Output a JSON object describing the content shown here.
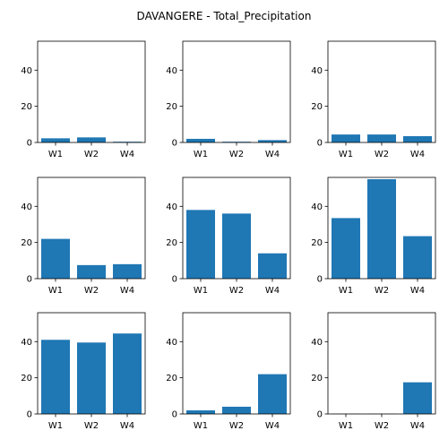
{
  "figure": {
    "suptitle": "DAVANGERE - Total_Precipitation"
  },
  "style": {
    "bar_color": "#1f77b4",
    "axis_color": "#000000",
    "background": "#ffffff"
  },
  "chart_data": [
    {
      "type": "bar",
      "categories": [
        "W1",
        "W2",
        "W4"
      ],
      "values": [
        2.3,
        2.8,
        0.4
      ],
      "ylim": [
        0,
        56
      ],
      "yticks": [
        0,
        20,
        40
      ],
      "grid": false
    },
    {
      "type": "bar",
      "categories": [
        "W1",
        "W2",
        "W4"
      ],
      "values": [
        2.0,
        0.4,
        1.3
      ],
      "ylim": [
        0,
        56
      ],
      "yticks": [
        0,
        20,
        40
      ],
      "grid": false
    },
    {
      "type": "bar",
      "categories": [
        "W1",
        "W2",
        "W4"
      ],
      "values": [
        4.4,
        4.4,
        3.5
      ],
      "ylim": [
        0,
        56
      ],
      "yticks": [
        0,
        20,
        40
      ],
      "grid": false
    },
    {
      "type": "bar",
      "categories": [
        "W1",
        "W2",
        "W4"
      ],
      "values": [
        22.0,
        7.5,
        8.0
      ],
      "ylim": [
        0,
        56
      ],
      "yticks": [
        0,
        20,
        40
      ],
      "grid": false
    },
    {
      "type": "bar",
      "categories": [
        "W1",
        "W2",
        "W4"
      ],
      "values": [
        38.0,
        36.0,
        14.0
      ],
      "ylim": [
        0,
        56
      ],
      "yticks": [
        0,
        20,
        40
      ],
      "grid": false
    },
    {
      "type": "bar",
      "categories": [
        "W1",
        "W2",
        "W4"
      ],
      "values": [
        33.5,
        55.0,
        23.5
      ],
      "ylim": [
        0,
        56
      ],
      "yticks": [
        0,
        20,
        40
      ],
      "grid": false
    },
    {
      "type": "bar",
      "categories": [
        "W1",
        "W2",
        "W4"
      ],
      "values": [
        41.0,
        39.5,
        44.5
      ],
      "ylim": [
        0,
        56
      ],
      "yticks": [
        0,
        20,
        40
      ],
      "grid": false
    },
    {
      "type": "bar",
      "categories": [
        "W1",
        "W2",
        "W4"
      ],
      "values": [
        2.0,
        4.0,
        22.0
      ],
      "ylim": [
        0,
        56
      ],
      "yticks": [
        0,
        20,
        40
      ],
      "grid": false
    },
    {
      "type": "bar",
      "categories": [
        "W1",
        "W2",
        "W4"
      ],
      "values": [
        0.1,
        0.1,
        17.5
      ],
      "ylim": [
        0,
        56
      ],
      "yticks": [
        0,
        20,
        40
      ],
      "grid": false
    }
  ]
}
